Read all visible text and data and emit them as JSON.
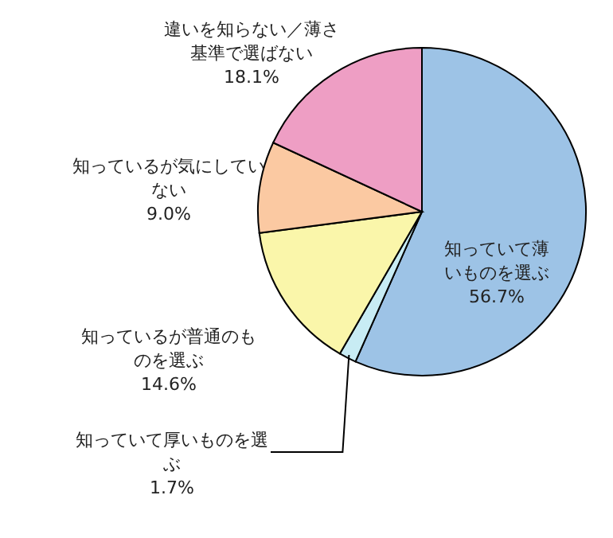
{
  "chart_data": {
    "type": "pie",
    "categories": [
      "知っていて薄いものを選ぶ",
      "知っていて厚いものを選ぶ",
      "知っているが普通のものを選ぶ",
      "知っているが気にしていない",
      "違いを知らない／薄さ基準で選ばない"
    ],
    "values": [
      56.7,
      1.7,
      14.6,
      9.0,
      18.1
    ],
    "value_labels": [
      "56.7%",
      "1.7%",
      "14.6%",
      "9.0%",
      "18.1%"
    ],
    "colors": [
      "#9dc3e6",
      "#c8ecf4",
      "#faf6aa",
      "#fbc9a2",
      "#ee9ec4"
    ]
  }
}
